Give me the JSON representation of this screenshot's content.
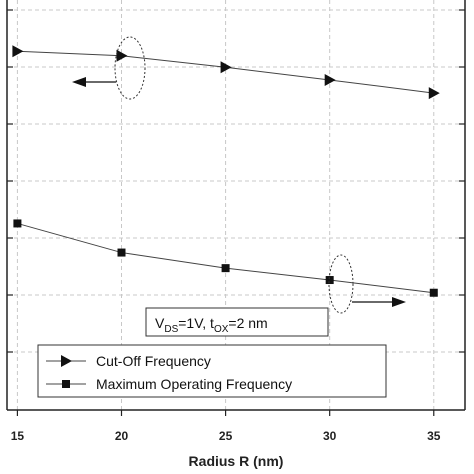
{
  "chart_data": {
    "type": "line",
    "xlabel": "Radius R  (nm)",
    "ylabel": "",
    "x": [
      15,
      20,
      25,
      30,
      35
    ],
    "xticks": [
      "15",
      "20",
      "25",
      "30",
      "35"
    ],
    "xlim": [
      14.5,
      36.5
    ],
    "ylim": [
      0,
      100
    ],
    "grid": true,
    "legend_position": "bottom-left",
    "series": [
      {
        "name": "Cut-Off Frequency",
        "marker": "triangle-right",
        "axis": "left",
        "values": [
          87.5,
          86.4,
          83.6,
          80.5,
          77.3
        ]
      },
      {
        "name": "Maximum Operating Frequency",
        "marker": "square",
        "axis": "right",
        "values": [
          45.5,
          38.4,
          34.6,
          31.7,
          28.6
        ]
      }
    ],
    "annotation": {
      "vds_main": "V",
      "vds_sub": "DS",
      "vds_rest": "=1V, t",
      "tox_sub": "OX",
      "tox_rest": "=2 nm"
    }
  }
}
